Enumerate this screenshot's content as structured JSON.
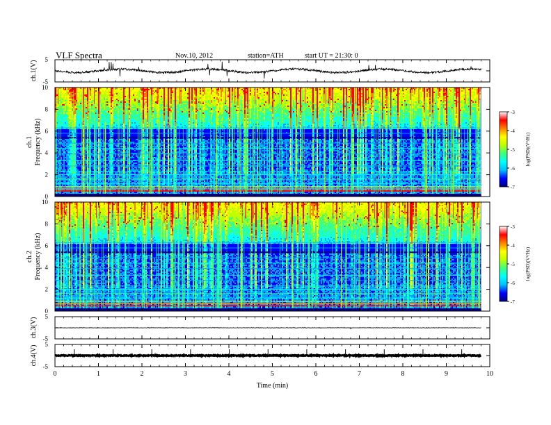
{
  "header": {
    "title": "VLF Spectra",
    "date": "Nov.10, 2012",
    "station": "station=ATH",
    "start_ut": "start UT =   21:30: 0"
  },
  "colors": {
    "colormap": [
      "#00007f",
      "#0000ff",
      "#00a0ff",
      "#00ffff",
      "#40ff80",
      "#c0ff00",
      "#ffff00",
      "#ff8000",
      "#ff0000",
      "#ffffff"
    ],
    "trace": "#000000"
  },
  "chart_data": [
    {
      "id": "ch1",
      "type": "line",
      "ylabel": "ch.1(V)",
      "yticks": [
        "5",
        "-5"
      ],
      "ylim": [
        -5,
        5
      ],
      "baseline": 0,
      "noise": "moderate"
    },
    {
      "id": "ch1-spectrogram",
      "type": "heatmap",
      "ylabel_top": "ch.1",
      "ylabel": "Frequency (kHz)",
      "yticks": [
        "10",
        "8",
        "6",
        "4",
        "2",
        "0"
      ],
      "ylim": [
        0,
        10
      ],
      "colorbar": {
        "label": "log(PSD)(V²/Hz)",
        "ticks": [
          "-3",
          "-4",
          "-5",
          "-6",
          "-7"
        ],
        "range": [
          -7,
          -3
        ]
      }
    },
    {
      "id": "ch2-spectrogram",
      "type": "heatmap",
      "ylabel_top": "ch.2",
      "ylabel": "Frequency (kHz)",
      "yticks": [
        "10",
        "8",
        "6",
        "4",
        "2",
        "0"
      ],
      "ylim": [
        0,
        10
      ],
      "colorbar": {
        "label": "log(PSD)(V²/Hz)",
        "ticks": [
          "-3",
          "-4",
          "-5",
          "-6",
          "-7"
        ],
        "range": [
          -7,
          -3
        ]
      }
    },
    {
      "id": "ch3",
      "type": "line",
      "ylabel": "ch.3(V)",
      "yticks": [
        "5",
        "-5"
      ],
      "ylim": [
        -5,
        5
      ],
      "baseline": 0,
      "noise": "flat"
    },
    {
      "id": "ch4",
      "type": "line",
      "ylabel": "ch.4(V)",
      "yticks": [
        "5",
        "-5"
      ],
      "ylim": [
        -5,
        5
      ],
      "baseline": 0,
      "noise": "thick"
    }
  ],
  "x_axis": {
    "xlabel": "Time (min)",
    "xlim": [
      0,
      10
    ],
    "data_end": 9.8,
    "ticks": [
      "0",
      "1",
      "2",
      "3",
      "4",
      "5",
      "6",
      "7",
      "8",
      "9",
      "10"
    ]
  }
}
